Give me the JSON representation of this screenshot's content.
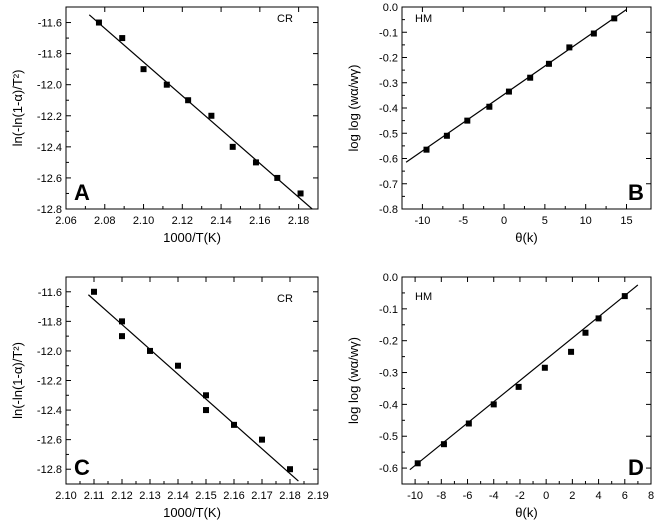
{
  "chart_data": [
    {
      "type": "scatter",
      "panel": "A",
      "annotation": "CR",
      "xlabel": "1000/T(K)",
      "ylabel": "ln(-ln(1-α)/T²)",
      "xlim": [
        2.06,
        2.19
      ],
      "ylim": [
        -12.8,
        -11.5
      ],
      "xticks": [
        "2.06",
        "2.08",
        "2.10",
        "2.12",
        "2.14",
        "2.16",
        "2.18"
      ],
      "yticks": [
        "-12.8",
        "-12.6",
        "-12.4",
        "-12.2",
        "-12.0",
        "-11.8",
        "-11.6"
      ],
      "xtick_values": [
        2.06,
        2.08,
        2.1,
        2.12,
        2.14,
        2.16,
        2.18
      ],
      "ytick_values": [
        -12.8,
        -12.6,
        -12.4,
        -12.2,
        -12.0,
        -11.8,
        -11.6
      ],
      "x": [
        2.077,
        2.089,
        2.1,
        2.112,
        2.123,
        2.135,
        2.146,
        2.158,
        2.169,
        2.181
      ],
      "y": [
        -11.6,
        -11.7,
        -11.9,
        -12.0,
        -12.1,
        -12.2,
        -12.4,
        -12.5,
        -12.6,
        -12.7
      ],
      "fit_line": [
        [
          2.072,
          -11.55
        ],
        [
          2.187,
          -12.8
        ]
      ],
      "grid": false
    },
    {
      "type": "scatter",
      "panel": "B",
      "annotation": "HM",
      "xlabel": "θ(k)",
      "ylabel": "log log (wα/wγ)",
      "xlim": [
        -12.5,
        18
      ],
      "ylim": [
        -0.8,
        0.0
      ],
      "xticks": [
        "-10",
        "-5",
        "0",
        "5",
        "10",
        "15"
      ],
      "yticks": [
        "-0.8",
        "-0.7",
        "-0.6",
        "-0.5",
        "-0.4",
        "-0.3",
        "-0.2",
        "-0.1",
        "0.0"
      ],
      "xtick_values": [
        -10,
        -5,
        0,
        5,
        10,
        15
      ],
      "ytick_values": [
        -0.8,
        -0.7,
        -0.6,
        -0.5,
        -0.4,
        -0.3,
        -0.2,
        -0.1,
        0.0
      ],
      "x": [
        -9.5,
        -7.0,
        -4.5,
        -1.8,
        0.6,
        3.2,
        5.5,
        8.0,
        11.0,
        13.5
      ],
      "y": [
        -0.565,
        -0.51,
        -0.45,
        -0.395,
        -0.335,
        -0.28,
        -0.225,
        -0.16,
        -0.105,
        -0.045
      ],
      "fit_line": [
        [
          -12.0,
          -0.615
        ],
        [
          15.0,
          -0.01
        ]
      ],
      "grid": false
    },
    {
      "type": "scatter",
      "panel": "C",
      "annotation": "CR",
      "xlabel": "1000/T(K)",
      "ylabel": "ln(-ln(1-α)/T²)",
      "xlim": [
        2.1,
        2.19
      ],
      "ylim": [
        -12.9,
        -11.5
      ],
      "xticks": [
        "2.10",
        "2.11",
        "2.12",
        "2.13",
        "2.14",
        "2.15",
        "2.16",
        "2.17",
        "2.18",
        "2.19"
      ],
      "yticks": [
        "-12.8",
        "-12.6",
        "-12.4",
        "-12.2",
        "-12.0",
        "-11.8",
        "-11.6"
      ],
      "xtick_values": [
        2.1,
        2.11,
        2.12,
        2.13,
        2.14,
        2.15,
        2.16,
        2.17,
        2.18,
        2.19
      ],
      "ytick_values": [
        -12.8,
        -12.6,
        -12.4,
        -12.2,
        -12.0,
        -11.8,
        -11.6
      ],
      "x": [
        2.11,
        2.12,
        2.12,
        2.13,
        2.14,
        2.15,
        2.15,
        2.16,
        2.17,
        2.18
      ],
      "y": [
        -11.6,
        -11.8,
        -11.9,
        -12.0,
        -12.1,
        -12.3,
        -12.4,
        -12.5,
        -12.6,
        -12.8
      ],
      "fit_line": [
        [
          2.108,
          -11.62
        ],
        [
          2.183,
          -12.88
        ]
      ],
      "grid": false
    },
    {
      "type": "scatter",
      "panel": "D",
      "annotation": "HM",
      "xlabel": "θ(k)",
      "ylabel": "log log (wα/wγ)",
      "xlim": [
        -11,
        8
      ],
      "ylim": [
        -0.65,
        0.0
      ],
      "xticks": [
        "-10",
        "-8",
        "-6",
        "-4",
        "-2",
        "0",
        "2",
        "4",
        "6",
        "8"
      ],
      "yticks": [
        "-0.6",
        "-0.5",
        "-0.4",
        "-0.3",
        "-0.2",
        "-0.1",
        "0.0"
      ],
      "xtick_values": [
        -10,
        -8,
        -6,
        -4,
        -2,
        0,
        2,
        4,
        6,
        8
      ],
      "ytick_values": [
        -0.6,
        -0.5,
        -0.4,
        -0.3,
        -0.2,
        -0.1,
        0.0
      ],
      "x": [
        -9.8,
        -7.8,
        -5.9,
        -4.0,
        -2.1,
        -0.1,
        1.9,
        3.0,
        4.0,
        6.0
      ],
      "y": [
        -0.585,
        -0.525,
        -0.46,
        -0.4,
        -0.345,
        -0.285,
        -0.235,
        -0.175,
        -0.13,
        -0.06
      ],
      "fit_line": [
        [
          -10.4,
          -0.605
        ],
        [
          7.0,
          -0.025
        ]
      ],
      "grid": false
    }
  ]
}
